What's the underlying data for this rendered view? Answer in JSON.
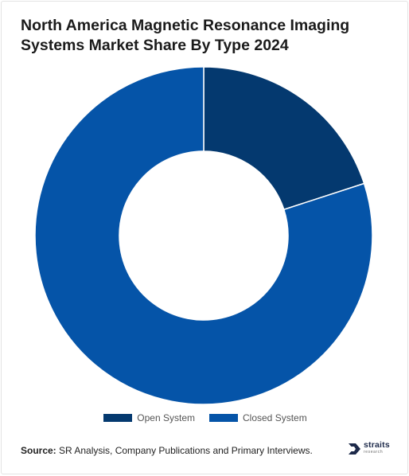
{
  "title": "North America Magnetic Resonance Imaging Systems Market Share By Type 2024",
  "chart_data": {
    "type": "pie",
    "title": "North America Magnetic Resonance Imaging Systems Market Share By Type 2024",
    "donut": true,
    "categories": [
      "Open System",
      "Closed System"
    ],
    "values": [
      20,
      80
    ],
    "unit": "%",
    "colors": [
      "#04396f",
      "#0554a8"
    ],
    "legend_position": "bottom"
  },
  "source": {
    "label": "Source:",
    "text": " SR Analysis, Company Publications and Primary Interviews."
  },
  "logo": {
    "name": "straits",
    "tagline": "research",
    "icon": "straits-logo-icon"
  }
}
